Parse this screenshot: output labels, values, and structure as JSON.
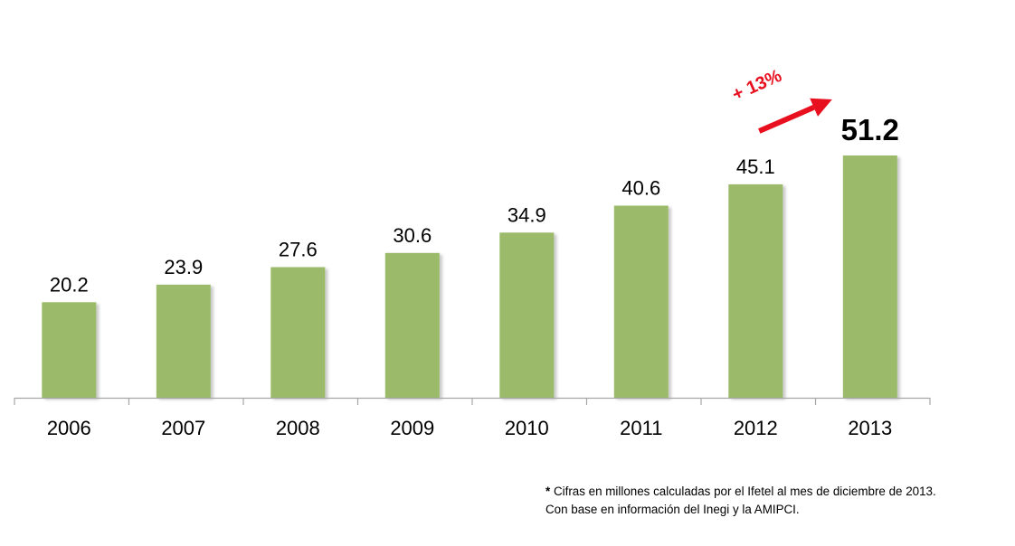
{
  "chart_data": {
    "type": "bar",
    "title": "",
    "xlabel": "",
    "ylabel": "",
    "categories": [
      "2006",
      "2007",
      "2008",
      "2009",
      "2010",
      "2011",
      "2012",
      "2013"
    ],
    "values": [
      20.2,
      23.9,
      27.6,
      30.6,
      34.9,
      40.6,
      45.1,
      51.2
    ],
    "value_labels": [
      "20.2",
      "23.9",
      "27.6",
      "30.6",
      "34.9",
      "40.6",
      "45.1",
      "51.2"
    ],
    "ylim": [
      0,
      51.2
    ],
    "grid": false,
    "highlighted_category": "2013",
    "annotation": {
      "text": "+ 13%",
      "from": "2012",
      "to": "2013"
    }
  },
  "colors": {
    "bar": "#9bbb6a",
    "axis": "#a6a6a6",
    "annotation": "#e8101e",
    "text": "#000000"
  },
  "footnote": {
    "asterisk": "*",
    "line1": "Cifras en millones calculadas por el Ifetel al mes de diciembre de 2013.",
    "line2": "Con base en información del Inegi y la AMIPCI."
  }
}
